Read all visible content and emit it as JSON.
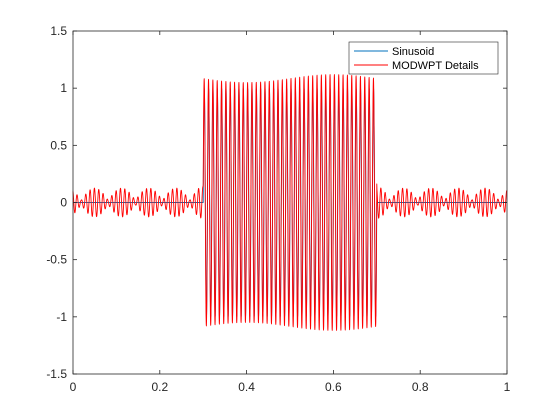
{
  "chart_data": {
    "type": "line",
    "xlim": [
      0,
      1
    ],
    "ylim": [
      -1.5,
      1.5
    ],
    "x_ticks": [
      0,
      0.2,
      0.4,
      0.6,
      0.8,
      1
    ],
    "x_tick_labels": [
      "0",
      "0.2",
      "0.4",
      "0.6",
      "0.8",
      "1"
    ],
    "y_ticks": [
      -1.5,
      -1,
      -0.5,
      0,
      0.5,
      1,
      1.5
    ],
    "y_tick_labels": [
      "-1.5",
      "-1",
      "-0.5",
      "0",
      "0.5",
      "1",
      "1.5"
    ],
    "grid": false,
    "legend_position": "top-right",
    "series": [
      {
        "name": "Sinusoid",
        "color": "#0072BD",
        "description": "Pure sinusoid of amplitude 1 active between x=0.3 and x=0.7, zero elsewhere",
        "active_interval": [
          0.3,
          0.7
        ],
        "amplitude": 1,
        "cycles_per_unit": 100
      },
      {
        "name": "MODWPT Details",
        "color": "#FF0000",
        "description": "Wavelet packet detail reconstruction: follows the sinusoid with amplitude ~1.0-1.1 inside the active interval and small oscillating leakage (~0.05-0.15) outside",
        "active_interval": [
          0.3,
          0.7
        ],
        "amplitude": 1.05,
        "peak_amplitude": 1.12,
        "leakage_amplitude": 0.14,
        "cycles_per_unit": 100
      }
    ]
  }
}
